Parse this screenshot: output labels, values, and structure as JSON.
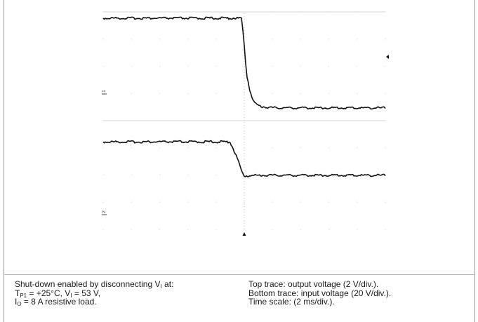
{
  "captions": {
    "left": {
      "line1": {
        "pre": "Shut-down enabled by disconnecting V",
        "sub": "I",
        "post": " at:"
      },
      "line2": {
        "a": "T",
        "a_sub": "P1",
        "b": " = +25°C, V",
        "b_sub": "I",
        "c": " = 53 V,"
      },
      "line3": {
        "a": "I",
        "a_sub": "O",
        "b": " = 8 A resistive load."
      }
    },
    "right": {
      "line1": "Top trace: output voltage (2 V/div.).",
      "line2": "Bottom trace: input voltage (20 V/div.).",
      "line3": "Time scale: (2 ms/div.)."
    }
  },
  "chart_data": [
    {
      "type": "line",
      "title": "",
      "xlabel": "",
      "ylabel": "",
      "x_divisions": 10,
      "y_divisions": 4,
      "x_scale": "2 ms/div.",
      "y_scale": "2 V/div.",
      "xlim": [
        0,
        10
      ],
      "ylim": [
        0,
        4
      ],
      "trigger_time_div": 5,
      "channel_marker": "1",
      "series": [
        {
          "name": "Top trace: output voltage",
          "x": [
            0,
            4.9,
            4.95,
            5.0,
            5.05,
            5.1,
            5.2,
            5.3,
            5.4,
            5.6,
            5.9,
            6.3,
            7,
            8,
            9,
            10
          ],
          "y": [
            3.75,
            3.75,
            3.3,
            2.7,
            2.1,
            1.6,
            1.1,
            0.75,
            0.6,
            0.5,
            0.46,
            0.45,
            0.45,
            0.45,
            0.45,
            0.45
          ]
        }
      ],
      "grid": true,
      "color": "#111111"
    },
    {
      "type": "line",
      "title": "",
      "xlabel": "",
      "ylabel": "",
      "x_divisions": 10,
      "y_divisions": 4,
      "x_scale": "2 ms/div.",
      "y_scale": "20 V/div.",
      "xlim": [
        0,
        10
      ],
      "ylim": [
        0,
        4
      ],
      "trigger_time_div": 5,
      "channel_marker": "2",
      "series": [
        {
          "name": "Bottom trace: input voltage",
          "x": [
            0,
            4.5,
            4.75,
            4.95,
            5.0,
            5.5,
            6,
            7,
            8,
            9,
            10
          ],
          "y": [
            3.2,
            3.2,
            2.6,
            2.0,
            1.95,
            1.97,
            1.97,
            1.97,
            1.97,
            1.97,
            1.97
          ]
        }
      ],
      "grid": true,
      "color": "#111111"
    }
  ]
}
